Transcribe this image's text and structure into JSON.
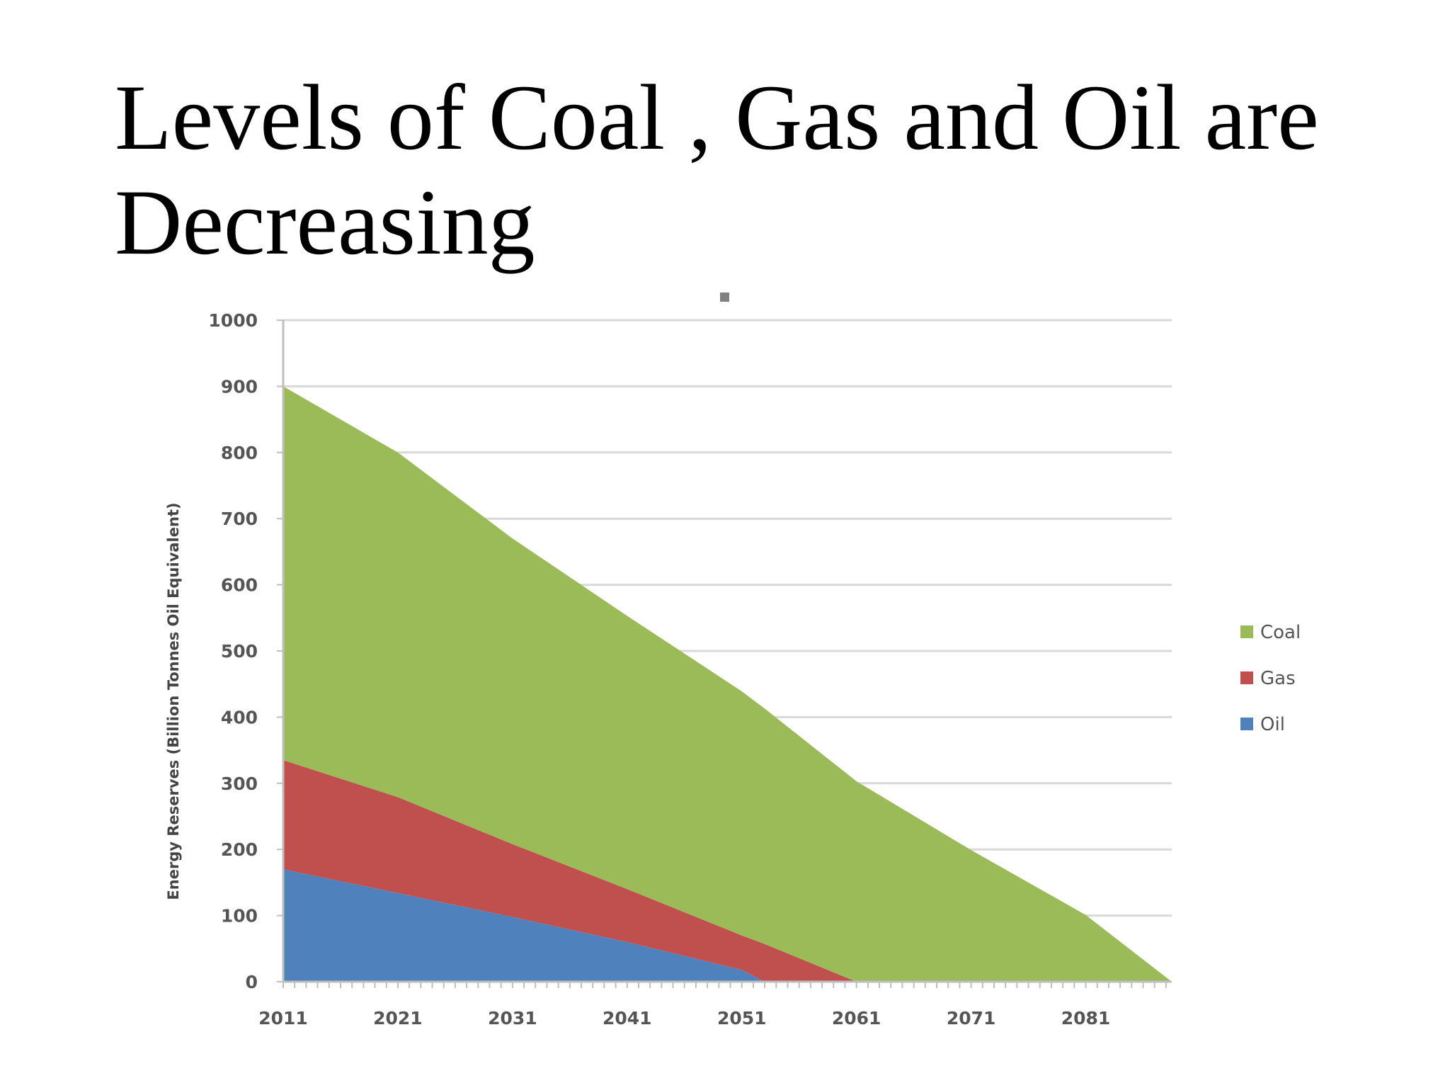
{
  "slide": {
    "title": "Levels of Coal , Gas and Oil are Decreasing"
  },
  "chart_data": {
    "type": "area",
    "stacked": true,
    "title": "",
    "xlabel": "",
    "ylabel": "Energy Reserves (Billion Tonnes Oil Equivalent)",
    "x_ticks": [
      "2011",
      "2021",
      "2031",
      "2041",
      "2051",
      "2061",
      "2071",
      "2081"
    ],
    "y_ticks": [
      0,
      100,
      200,
      300,
      400,
      500,
      600,
      700,
      800,
      900,
      1000
    ],
    "xlim": [
      2011,
      2088.5
    ],
    "ylim": [
      0,
      1000
    ],
    "grid": true,
    "legend_position": "right",
    "legend_order": [
      "Coal",
      "Gas",
      "Oil"
    ],
    "series": [
      {
        "name": "Oil",
        "color": "#4f81bd",
        "points": [
          [
            2011,
            170
          ],
          [
            2021,
            134
          ],
          [
            2031,
            98
          ],
          [
            2041,
            60
          ],
          [
            2051,
            18
          ],
          [
            2053,
            0
          ],
          [
            2088.5,
            0
          ]
        ]
      },
      {
        "name": "Gas",
        "color": "#c0504d",
        "points": [
          [
            2011,
            165
          ],
          [
            2021,
            145
          ],
          [
            2031,
            110
          ],
          [
            2041,
            80
          ],
          [
            2051,
            52
          ],
          [
            2053,
            57
          ],
          [
            2061,
            0
          ],
          [
            2088.5,
            0
          ]
        ]
      },
      {
        "name": "Coal",
        "color": "#9bbb59",
        "points": [
          [
            2011,
            565
          ],
          [
            2021,
            521
          ],
          [
            2031,
            462
          ],
          [
            2041,
            413
          ],
          [
            2051,
            369
          ],
          [
            2061,
            303
          ],
          [
            2071,
            199
          ],
          [
            2081,
            101
          ],
          [
            2088.5,
            0
          ]
        ]
      }
    ]
  }
}
